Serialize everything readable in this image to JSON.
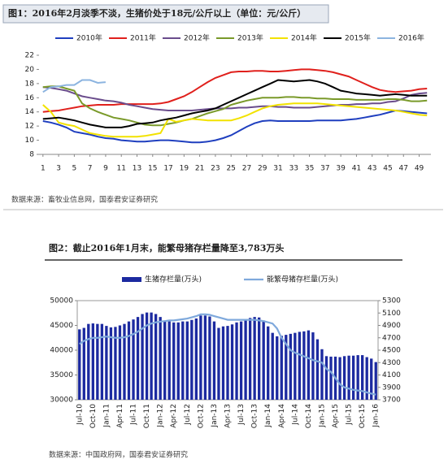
{
  "chart_data": [
    {
      "type": "line",
      "title": "图1：2016年2月淡季不淡，生猪价处于18元/公斤以上（单位：元/公斤）",
      "source": "数据来源：畜牧业信息网，国泰君安证券研究",
      "x": [
        1,
        2,
        3,
        4,
        5,
        6,
        7,
        8,
        9,
        10,
        11,
        12,
        13,
        14,
        15,
        16,
        17,
        18,
        19,
        20,
        21,
        22,
        23,
        24,
        25,
        26,
        27,
        28,
        29,
        30,
        31,
        32,
        33,
        34,
        35,
        36,
        37,
        38,
        39,
        40,
        41,
        42,
        43,
        44,
        45,
        46,
        47,
        48,
        49,
        50
      ],
      "xlim": [
        0.5,
        50.5
      ],
      "xticks": [
        1,
        3,
        5,
        7,
        9,
        11,
        13,
        15,
        17,
        19,
        21,
        23,
        25,
        27,
        29,
        31,
        33,
        35,
        37,
        39,
        41,
        43,
        45,
        47,
        49
      ],
      "ylim": [
        8,
        22
      ],
      "yticks": [
        8,
        10,
        12,
        14,
        16,
        18,
        20,
        22
      ],
      "series": [
        {
          "name": "2010年",
          "color": "#1f3fbf",
          "values": [
            12.7,
            12.5,
            12.2,
            11.8,
            11.2,
            11.0,
            10.8,
            10.5,
            10.3,
            10.2,
            10.0,
            9.9,
            9.8,
            9.8,
            9.9,
            10.0,
            10.0,
            9.9,
            9.8,
            9.7,
            9.7,
            9.8,
            10.0,
            10.3,
            10.7,
            11.3,
            11.9,
            12.4,
            12.7,
            12.8,
            12.7,
            12.7,
            12.7,
            12.7,
            12.7,
            12.8,
            12.8,
            12.8,
            12.8,
            12.9,
            13.0,
            13.2,
            13.4,
            13.6,
            13.9,
            14.2,
            14.1,
            14.0,
            13.9,
            13.8
          ]
        },
        {
          "name": "2011年",
          "color": "#e0201c",
          "values": [
            14.0,
            14.1,
            14.2,
            14.4,
            14.6,
            14.8,
            14.9,
            15.0,
            15.0,
            15.0,
            15.1,
            15.1,
            15.1,
            15.1,
            15.1,
            15.2,
            15.4,
            15.8,
            16.2,
            16.8,
            17.5,
            18.2,
            18.8,
            19.2,
            19.6,
            19.7,
            19.7,
            19.8,
            19.8,
            19.7,
            19.7,
            19.8,
            19.9,
            20.0,
            20.0,
            19.9,
            19.8,
            19.6,
            19.3,
            19.0,
            18.5,
            18.0,
            17.5,
            17.1,
            16.9,
            16.8,
            16.9,
            17.0,
            17.2,
            17.3
          ]
        },
        {
          "name": "2012年",
          "color": "#6a4c8c",
          "values": [
            17.5,
            17.4,
            17.2,
            17.0,
            16.6,
            16.2,
            16.0,
            15.8,
            15.6,
            15.5,
            15.3,
            15.0,
            14.8,
            14.6,
            14.4,
            14.3,
            14.2,
            14.2,
            14.2,
            14.2,
            14.3,
            14.4,
            14.5,
            14.5,
            14.5,
            14.6,
            14.6,
            14.7,
            14.8,
            14.8,
            14.7,
            14.7,
            14.6,
            14.6,
            14.6,
            14.7,
            14.8,
            14.9,
            15.0,
            15.0,
            15.1,
            15.1,
            15.2,
            15.2,
            15.4,
            15.5,
            15.9,
            16.4,
            16.6,
            16.7
          ]
        },
        {
          "name": "2013年",
          "color": "#7a9a2a",
          "values": [
            17.5,
            17.6,
            17.6,
            17.3,
            17.0,
            15.2,
            14.5,
            14.0,
            13.6,
            13.2,
            13.0,
            12.8,
            12.5,
            12.2,
            12.1,
            12.1,
            12.3,
            12.5,
            12.8,
            13.0,
            13.4,
            13.8,
            14.1,
            14.4,
            15.0,
            15.3,
            15.6,
            15.8,
            16.0,
            16.0,
            16.0,
            16.1,
            16.1,
            16.0,
            16.0,
            15.9,
            15.9,
            15.8,
            15.8,
            15.8,
            15.7,
            15.7,
            15.7,
            15.7,
            15.8,
            15.8,
            15.7,
            15.5,
            15.5,
            15.6
          ]
        },
        {
          "name": "2014年",
          "color": "#f2e200",
          "values": [
            15.0,
            14.0,
            12.5,
            12.2,
            12.0,
            11.5,
            11.0,
            10.8,
            10.6,
            10.5,
            10.5,
            10.5,
            10.5,
            10.6,
            10.8,
            11.0,
            13.0,
            12.6,
            12.8,
            13.0,
            12.9,
            12.8,
            12.8,
            12.8,
            12.8,
            13.1,
            13.5,
            14.0,
            14.5,
            14.8,
            15.0,
            15.1,
            15.2,
            15.2,
            15.2,
            15.2,
            15.1,
            15.0,
            14.9,
            14.8,
            14.7,
            14.6,
            14.5,
            14.4,
            14.3,
            14.2,
            14.0,
            13.8,
            13.6,
            13.5
          ]
        },
        {
          "name": "2015年",
          "color": "#000000",
          "values": [
            13.0,
            13.1,
            13.2,
            13.0,
            12.8,
            12.5,
            12.2,
            12.0,
            11.8,
            11.8,
            11.8,
            12.0,
            12.3,
            12.4,
            12.5,
            12.8,
            13.0,
            13.2,
            13.5,
            13.8,
            14.0,
            14.2,
            14.5,
            15.0,
            15.5,
            16.0,
            16.5,
            17.0,
            17.5,
            18.0,
            18.5,
            18.4,
            18.3,
            18.4,
            18.5,
            18.3,
            18.0,
            17.5,
            17.0,
            16.8,
            16.6,
            16.5,
            16.4,
            16.3,
            16.4,
            16.5,
            16.4,
            16.3,
            16.3,
            16.3
          ]
        },
        {
          "name": "2016年",
          "color": "#8cb4e0",
          "values": [
            16.8,
            17.5,
            17.6,
            17.8,
            17.8,
            18.5,
            18.5,
            18.1,
            18.2,
            null,
            null,
            null,
            null,
            null,
            null,
            null,
            null,
            null,
            null,
            null,
            null,
            null,
            null,
            null,
            null,
            null,
            null,
            null,
            null,
            null,
            null,
            null,
            null,
            null,
            null,
            null,
            null,
            null,
            null,
            null,
            null,
            null,
            null,
            null,
            null,
            null,
            null,
            null,
            null,
            null
          ]
        }
      ]
    },
    {
      "type": "combo",
      "title": "图2：截止2016年1月末，能繁母猪存栏量降至3,783万头",
      "source": "数据来源：中国政府网，国泰君安证券研究",
      "categories": [
        "Jul-10",
        null,
        null,
        "Oct-10",
        null,
        null,
        "Jan-11",
        null,
        null,
        "Apr-11",
        null,
        null,
        "Jul-11",
        null,
        null,
        "Oct-11",
        null,
        null,
        "Jan-12",
        null,
        null,
        "Apr-12",
        null,
        null,
        "Jul-12",
        null,
        null,
        "Oct-12",
        null,
        null,
        "Jan-13",
        null,
        null,
        "Apr-13",
        null,
        null,
        "Jul-13",
        null,
        null,
        "Oct-13",
        null,
        null,
        "Jan-14",
        null,
        null,
        "Apr-14",
        null,
        null,
        "Jul-14",
        null,
        null,
        "Oct-14",
        null,
        null,
        "Jan-15",
        null,
        null,
        "Apr-15",
        null,
        null,
        "Jul-15",
        null,
        null,
        "Oct-15",
        null,
        null,
        "Jan-16"
      ],
      "ylim": [
        30000,
        50000
      ],
      "yticks": [
        30000,
        35000,
        40000,
        45000,
        50000
      ],
      "y2lim": [
        3700,
        5300
      ],
      "y2ticks": [
        3700,
        3900,
        4100,
        4300,
        4500,
        4700,
        4900,
        5100,
        5300
      ],
      "series": [
        {
          "name": "生猪存栏量(万头)",
          "type": "bar",
          "color": "#1c2aa0",
          "values": [
            44200,
            44500,
            45300,
            45400,
            45300,
            45300,
            44900,
            44600,
            44700,
            45000,
            45300,
            45800,
            46200,
            46700,
            47300,
            47600,
            47600,
            47300,
            46700,
            45900,
            45800,
            45600,
            45600,
            45800,
            45800,
            46100,
            46400,
            47000,
            47000,
            46800,
            45800,
            44500,
            44800,
            44900,
            45200,
            45600,
            45800,
            46200,
            46500,
            46700,
            46600,
            46000,
            44800,
            43500,
            42800,
            42900,
            43100,
            43300,
            43500,
            43700,
            43800,
            44000,
            43600,
            42200,
            40200,
            38800,
            38700,
            38700,
            38600,
            38800,
            38900,
            38900,
            39000,
            39000,
            38600,
            38300,
            37600
          ]
        },
        {
          "name": "能繁母猪存栏量(万头)",
          "type": "line",
          "axis": "y2",
          "color": "#7fa9dc",
          "values": [
            4600,
            4650,
            4680,
            4700,
            4700,
            4710,
            4720,
            4710,
            4700,
            4700,
            4710,
            4730,
            4760,
            4800,
            4850,
            4900,
            4930,
            4950,
            4960,
            4970,
            4980,
            4980,
            4990,
            5000,
            5010,
            5030,
            5050,
            5080,
            5080,
            5070,
            5050,
            5030,
            5010,
            4990,
            4990,
            4990,
            4990,
            4990,
            4990,
            4990,
            4980,
            4970,
            4950,
            4930,
            4850,
            4700,
            4600,
            4500,
            4460,
            4430,
            4400,
            4370,
            4340,
            4320,
            4300,
            4200,
            4150,
            4050,
            3950,
            3900,
            3880,
            3860,
            3850,
            3840,
            3820,
            3800,
            3783
          ]
        }
      ]
    }
  ]
}
